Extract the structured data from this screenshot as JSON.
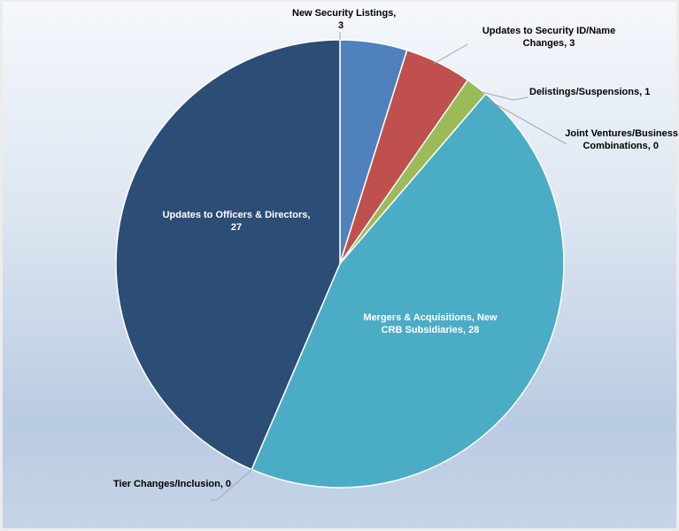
{
  "chart_data": {
    "type": "pie",
    "title": "",
    "start_angle_deg": 0,
    "direction": "clockwise",
    "slices": [
      {
        "label": "New Security Listings",
        "value": 3,
        "color": "#4f81bd"
      },
      {
        "label": "Updates to Security ID/Name Changes",
        "value": 3,
        "color": "#c0504d"
      },
      {
        "label": "Delistings/Suspensions",
        "value": 1,
        "color": "#9bbb59"
      },
      {
        "label": "Joint Ventures/Business Combinations",
        "value": 0,
        "color": "#8064a2"
      },
      {
        "label": "Mergers & Acquisitions, New CRB Subsidiaries",
        "value": 28,
        "color": "#4bacc6"
      },
      {
        "label": "Tier Changes/Inclusion",
        "value": 0,
        "color": "#f79646"
      },
      {
        "label": "Updates to Officers & Directors",
        "value": 27,
        "color": "#2c4d75"
      }
    ],
    "categories": [
      "New Security Listings",
      "Updates to Security ID/Name Changes",
      "Delistings/Suspensions",
      "Joint Ventures/Business Combinations",
      "Mergers & Acquisitions, New CRB Subsidiaries",
      "Tier Changes/Inclusion",
      "Updates to Officers & Directors"
    ],
    "values": [
      3,
      3,
      1,
      0,
      28,
      0,
      27
    ],
    "total": 62,
    "legend": "none (data labels with leader lines)"
  },
  "labels": {
    "new_security_1": "New Security Listings,",
    "new_security_2": "3",
    "sec_id_1": "Updates to Security ID/Name",
    "sec_id_2": "Changes, 3",
    "delistings": "Delistings/Suspensions, 1",
    "jv_1": "Joint Ventures/Business",
    "jv_2": "Combinations, 0",
    "ma_1": "Mergers & Acquisitions, New",
    "ma_2": "CRB Subsidiaries, 28",
    "tier": "Tier Changes/Inclusion, 0",
    "officers_1": "Updates to Officers & Directors,",
    "officers_2": "27"
  }
}
